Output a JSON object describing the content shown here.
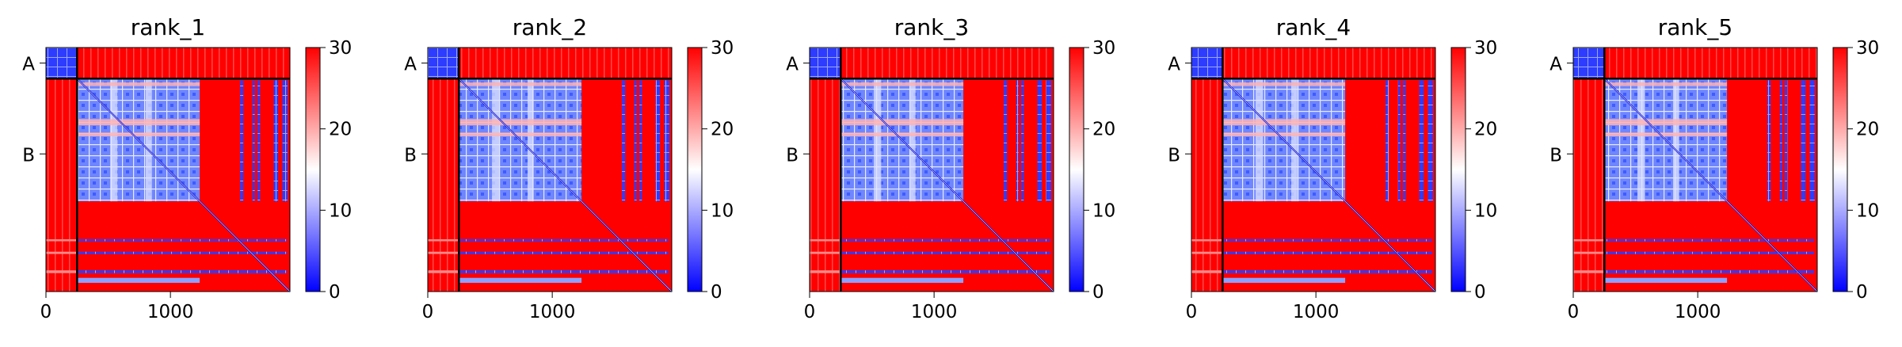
{
  "chart_data": [
    {
      "type": "heatmap",
      "title": "rank_1",
      "chains": [
        "A",
        "B"
      ],
      "chain_boundary": 250,
      "length": 1960,
      "xticks": [
        0,
        1000
      ],
      "xlim": [
        0,
        1960
      ],
      "colorbar": {
        "min": 0,
        "max": 30,
        "ticks": [
          0,
          10,
          20,
          30
        ]
      }
    },
    {
      "type": "heatmap",
      "title": "rank_2",
      "chains": [
        "A",
        "B"
      ],
      "chain_boundary": 250,
      "length": 1960,
      "xticks": [
        0,
        1000
      ],
      "xlim": [
        0,
        1960
      ],
      "colorbar": {
        "min": 0,
        "max": 30,
        "ticks": [
          0,
          10,
          20,
          30
        ]
      }
    },
    {
      "type": "heatmap",
      "title": "rank_3",
      "chains": [
        "A",
        "B"
      ],
      "chain_boundary": 250,
      "length": 1960,
      "xticks": [
        0,
        1000
      ],
      "xlim": [
        0,
        1960
      ],
      "colorbar": {
        "min": 0,
        "max": 30,
        "ticks": [
          0,
          10,
          20,
          30
        ]
      }
    },
    {
      "type": "heatmap",
      "title": "rank_4",
      "chains": [
        "A",
        "B"
      ],
      "chain_boundary": 250,
      "length": 1960,
      "xticks": [
        0,
        1000
      ],
      "xlim": [
        0,
        1960
      ],
      "colorbar": {
        "min": 0,
        "max": 30,
        "ticks": [
          0,
          10,
          20,
          30
        ]
      }
    },
    {
      "type": "heatmap",
      "title": "rank_5",
      "chains": [
        "A",
        "B"
      ],
      "chain_boundary": 250,
      "length": 1960,
      "xticks": [
        0,
        1000
      ],
      "xlim": [
        0,
        1960
      ],
      "colorbar": {
        "min": 0,
        "max": 30,
        "ticks": [
          0,
          10,
          20,
          30
        ]
      }
    }
  ],
  "colors": {
    "low": "#0000ff",
    "mid": "#ffffff",
    "high": "#ff0000"
  }
}
